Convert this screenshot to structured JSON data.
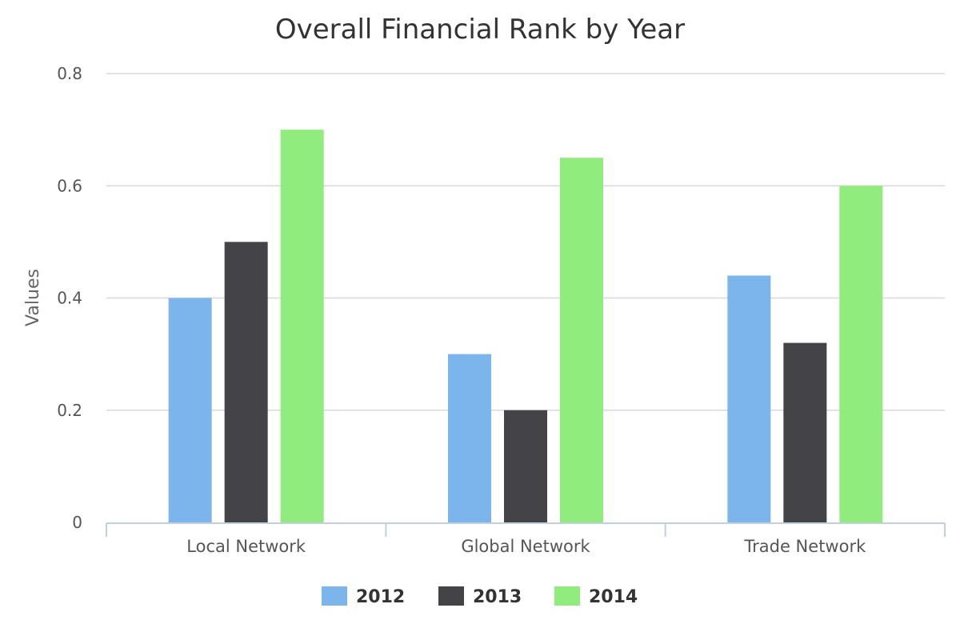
{
  "chart_data": {
    "type": "bar",
    "title": "Overall Financial Rank by Year",
    "xlabel": "",
    "ylabel": "Values",
    "ylim": [
      0,
      0.8
    ],
    "yticks": [
      0,
      0.2,
      0.4,
      0.6,
      0.8
    ],
    "ytick_labels": [
      "0",
      "0.2",
      "0.4",
      "0.6",
      "0.8"
    ],
    "categories": [
      "Local Network",
      "Global Network",
      "Trade Network"
    ],
    "series": [
      {
        "name": "2012",
        "color": "#7cb5ec",
        "values": [
          0.4,
          0.3,
          0.44
        ]
      },
      {
        "name": "2013",
        "color": "#434348",
        "values": [
          0.5,
          0.2,
          0.32
        ]
      },
      {
        "name": "2014",
        "color": "#90ed7d",
        "values": [
          0.7,
          0.65,
          0.6
        ]
      }
    ],
    "grid": true,
    "legend": "bottom-center"
  }
}
